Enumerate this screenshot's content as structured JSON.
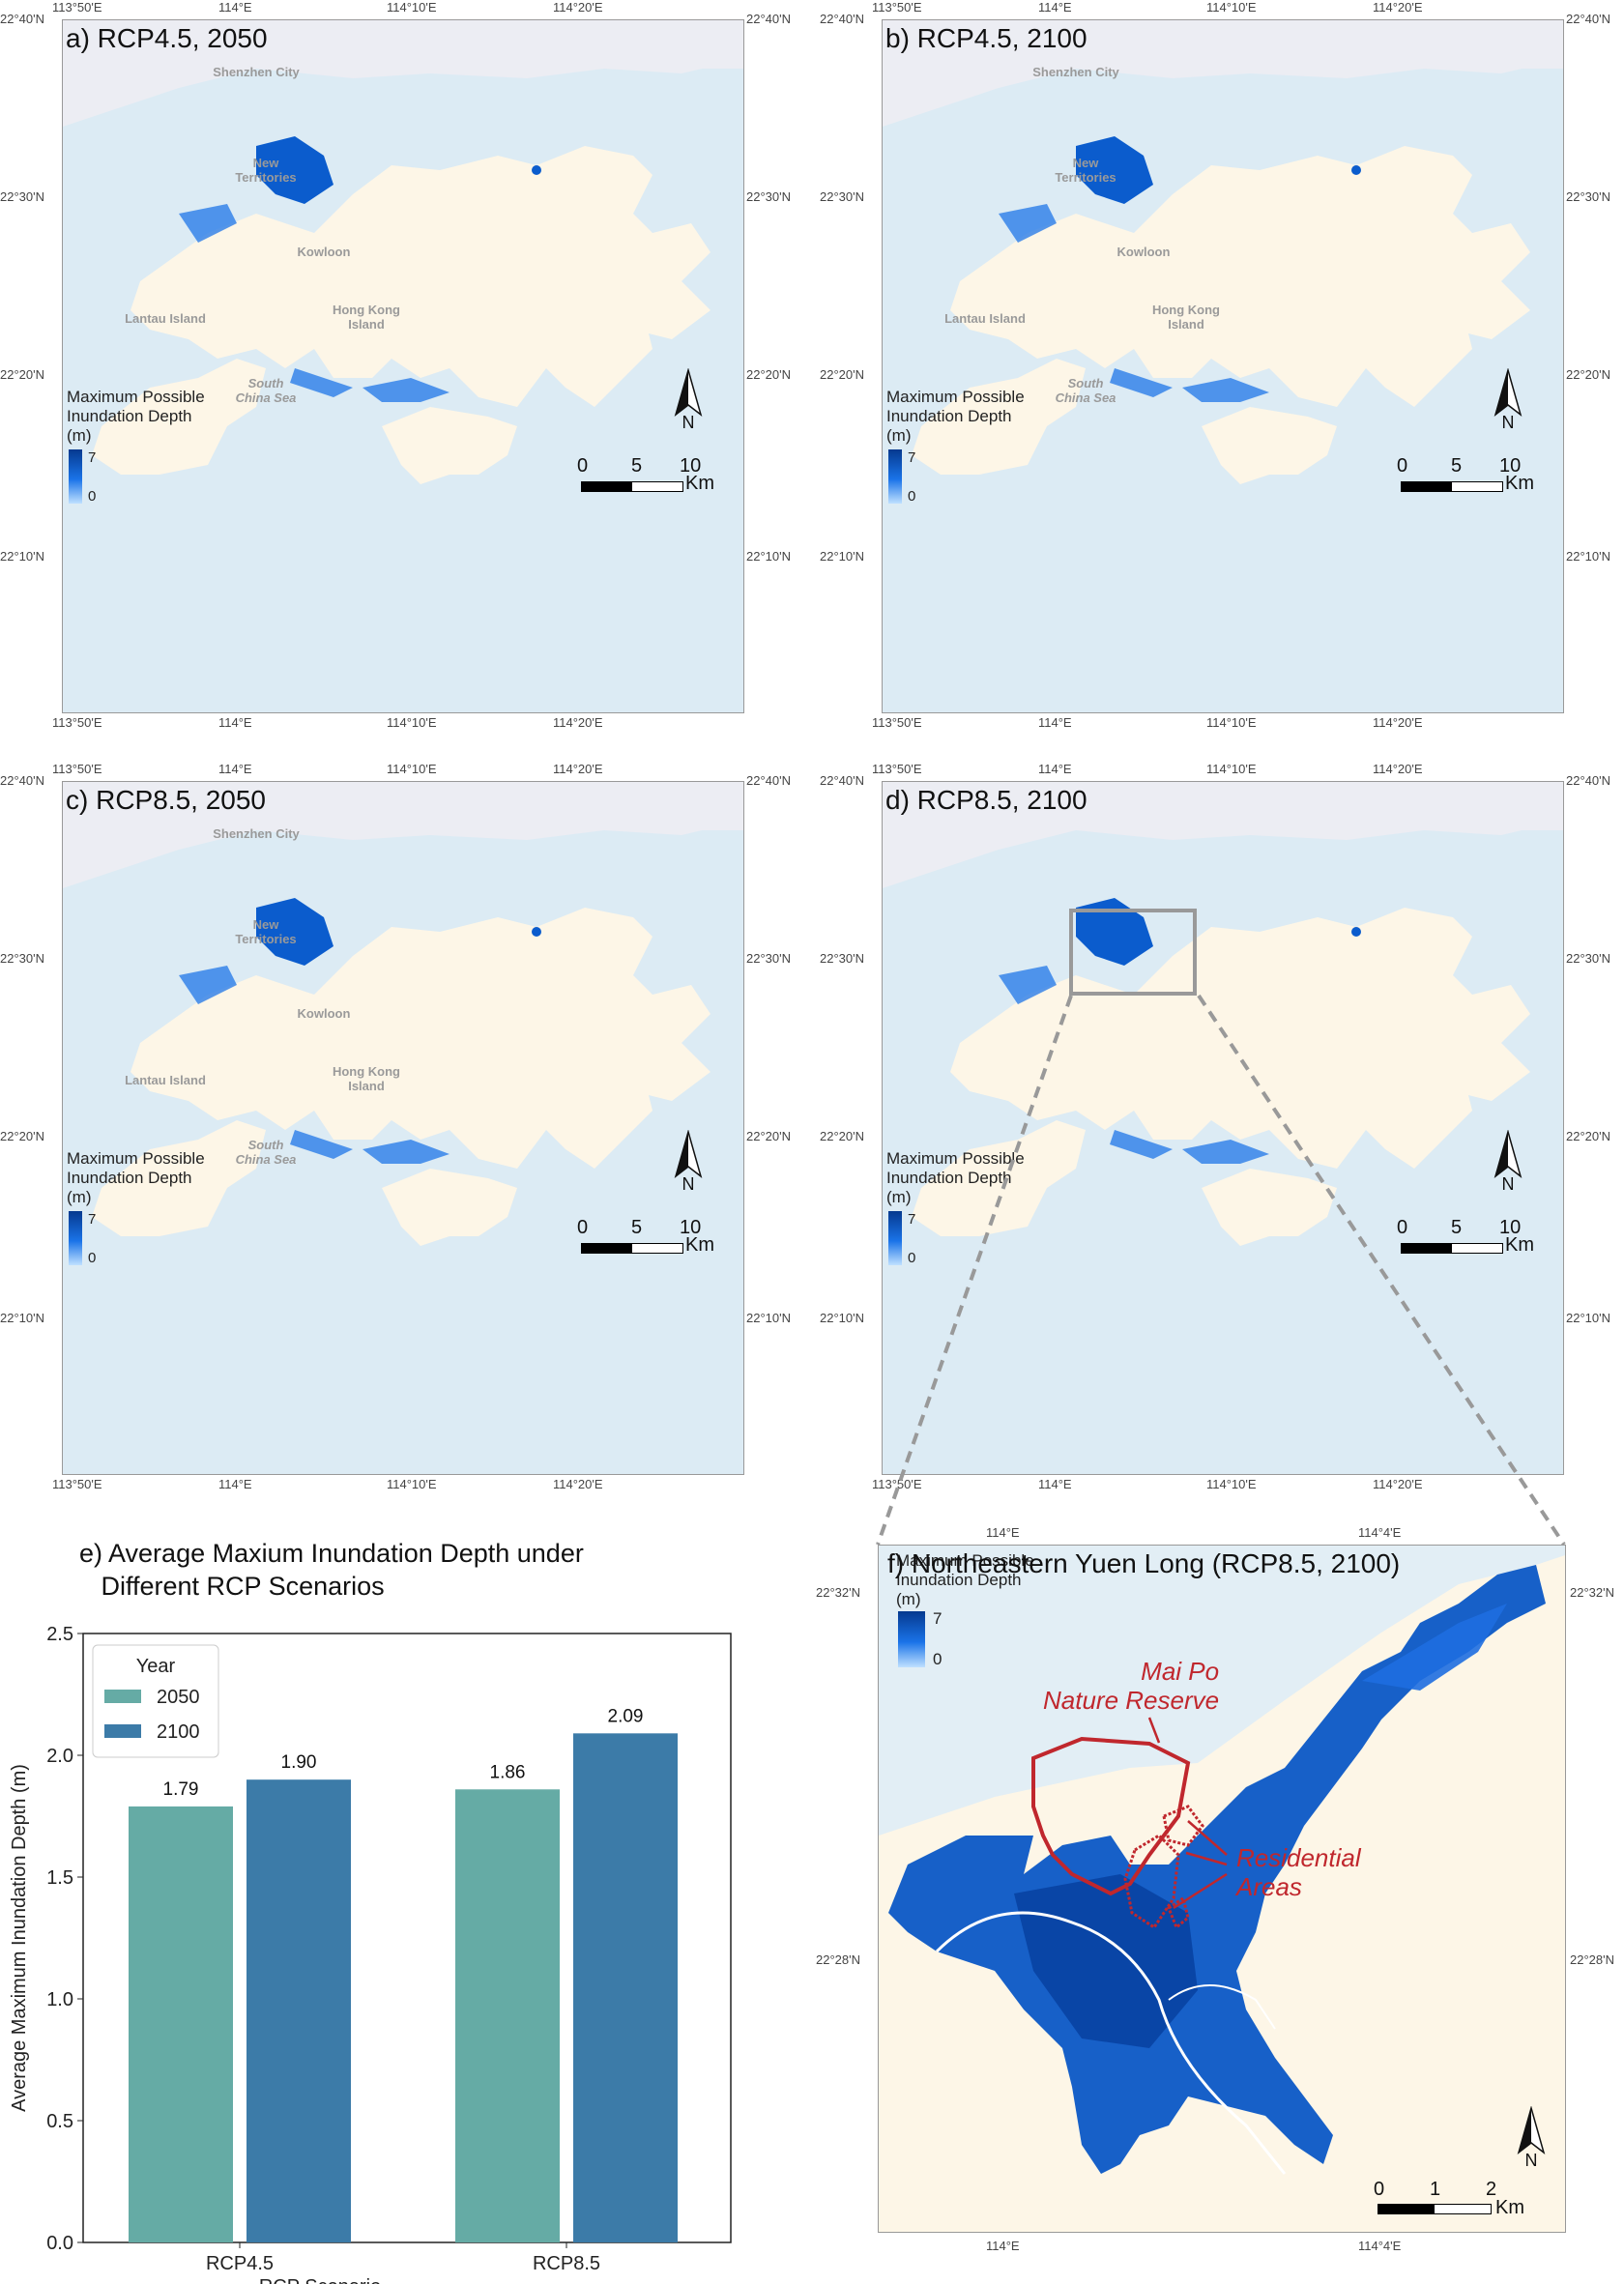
{
  "maps": [
    {
      "id": "a",
      "title": "a) RCP4.5, 2050",
      "top_coords": [
        "113°50'E",
        "114°E",
        "114°10'E",
        "114°20'E"
      ],
      "bottom_coords": [
        "113°50'E",
        "114°E",
        "114°10'E",
        "114°20'E"
      ],
      "left_coords": [
        "22°40'N",
        "22°30'N",
        "22°20'N",
        "22°10'N"
      ],
      "right_coords": [
        "22°40'N",
        "22°30'N",
        "22°20'N",
        "22°10'N"
      ],
      "places": {
        "shenzhen": "Shenzhen City",
        "new_territories": "New\nTerritories",
        "kowloon": "Kowloon",
        "lantau": "Lantau Island",
        "hk_island": "Hong Kong\nIsland",
        "south_china_sea": "South\nChina Sea"
      },
      "legend": {
        "title": "Maximum Possible\nInundation Depth\n(m)",
        "max": "7",
        "min": "0"
      },
      "scale": {
        "labels": [
          "0",
          "5",
          "10"
        ],
        "unit": "Km"
      },
      "north": "N"
    },
    {
      "id": "b",
      "title": "b) RCP4.5, 2100",
      "top_coords": [
        "113°50'E",
        "114°E",
        "114°10'E",
        "114°20'E"
      ],
      "bottom_coords": [
        "113°50'E",
        "114°E",
        "114°10'E",
        "114°20'E"
      ],
      "left_coords": [
        "22°40'N",
        "22°30'N",
        "22°20'N",
        "22°10'N"
      ],
      "right_coords": [
        "22°40'N",
        "22°30'N",
        "22°20'N",
        "22°10'N"
      ],
      "places": {
        "shenzhen": "Shenzhen City",
        "new_territories": "New\nTerritories",
        "kowloon": "Kowloon",
        "lantau": "Lantau Island",
        "hk_island": "Hong Kong\nIsland",
        "south_china_sea": "South\nChina Sea"
      },
      "legend": {
        "title": "Maximum Possible\nInundation Depth\n(m)",
        "max": "7",
        "min": "0"
      },
      "scale": {
        "labels": [
          "0",
          "5",
          "10"
        ],
        "unit": "Km"
      },
      "north": "N"
    },
    {
      "id": "c",
      "title": "c) RCP8.5, 2050",
      "top_coords": [
        "113°50'E",
        "114°E",
        "114°10'E",
        "114°20'E"
      ],
      "bottom_coords": [
        "113°50'E",
        "114°E",
        "114°10'E",
        "114°20'E"
      ],
      "left_coords": [
        "22°40'N",
        "22°30'N",
        "22°20'N",
        "22°10'N"
      ],
      "right_coords": [
        "22°40'N",
        "22°30'N",
        "22°20'N",
        "22°10'N"
      ],
      "places": {
        "shenzhen": "Shenzhen City",
        "new_territories": "New\nTerritories",
        "kowloon": "Kowloon",
        "lantau": "Lantau Island",
        "hk_island": "Hong Kong\nIsland",
        "south_china_sea": "South\nChina Sea"
      },
      "legend": {
        "title": "Maximum Possible\nInundation Depth\n(m)",
        "max": "7",
        "min": "0"
      },
      "scale": {
        "labels": [
          "0",
          "5",
          "10"
        ],
        "unit": "Km"
      },
      "north": "N"
    },
    {
      "id": "d",
      "title": "d) RCP8.5, 2100",
      "top_coords": [
        "113°50'E",
        "114°E",
        "114°10'E",
        "114°20'E"
      ],
      "bottom_coords": [
        "113°50'E",
        "114°E",
        "114°10'E",
        "114°20'E"
      ],
      "left_coords": [
        "22°40'N",
        "22°30'N",
        "22°20'N",
        "22°10'N"
      ],
      "right_coords": [
        "22°40'N",
        "22°30'N",
        "22°20'N",
        "22°10'N"
      ],
      "places": {
        "shenzhen": "",
        "new_territories": "",
        "kowloon": "",
        "lantau": "",
        "hk_island": "",
        "south_china_sea": ""
      },
      "legend": {
        "title": "Maximum Possible\nInundation Depth\n(m)",
        "max": "7",
        "min": "0"
      },
      "scale": {
        "labels": [
          "0",
          "5",
          "10"
        ],
        "unit": "Km"
      },
      "north": "N"
    }
  ],
  "detail_map": {
    "title": "f) Northeastern Yuen Long (RCP8.5, 2100)",
    "top_coords": [
      "114°E",
      "114°4'E"
    ],
    "bottom_coords": [
      "114°E",
      "114°4'E"
    ],
    "left_coords": [
      "22°32'N",
      "22°28'N"
    ],
    "right_coords": [
      "22°32'N",
      "22°28'N"
    ],
    "legend": {
      "title": "Maximum Possible\nInundation Depth\n(m)",
      "max": "7",
      "min": "0"
    },
    "annotations": {
      "reserve": "Mai Po\nNature Reserve",
      "residential": "Residential\nAreas"
    },
    "scale": {
      "labels": [
        "0",
        "1",
        "2"
      ],
      "unit": "Km"
    },
    "north": "N"
  },
  "chart_data": {
    "type": "bar",
    "title": "e) Average Maxium Inundation Depth under\n   Different RCP Scenarios",
    "categories": [
      "RCP4.5",
      "RCP8.5"
    ],
    "series": [
      {
        "name": "2050",
        "values": [
          1.79,
          1.86
        ],
        "labels": [
          "1.79",
          "1.86"
        ],
        "color": "#65aba5"
      },
      {
        "name": "2100",
        "values": [
          1.9,
          2.09
        ],
        "labels": [
          "1.90",
          "2.09"
        ],
        "color": "#3c7ba8"
      }
    ],
    "xlabel": "RCP Scenario",
    "ylabel": "Average Maximum Inundation Depth (m)",
    "ylim": [
      0,
      2.5
    ],
    "yticks": [
      "0.0",
      "0.5",
      "1.0",
      "1.5",
      "2.0",
      "2.5"
    ],
    "legend": {
      "title": "Year",
      "position": "top-left"
    },
    "grid": false
  }
}
